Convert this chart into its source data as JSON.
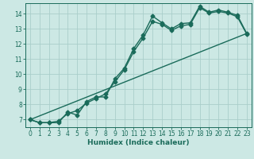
{
  "xlabel": "Humidex (Indice chaleur)",
  "bg_color": "#cce8e4",
  "line_color": "#1a6b5a",
  "grid_color": "#aaceca",
  "xlim": [
    -0.5,
    23.5
  ],
  "ylim": [
    6.5,
    14.7
  ],
  "xticks": [
    0,
    1,
    2,
    3,
    4,
    5,
    6,
    7,
    8,
    9,
    10,
    11,
    12,
    13,
    14,
    15,
    16,
    17,
    18,
    19,
    20,
    21,
    22,
    23
  ],
  "yticks": [
    7,
    8,
    9,
    10,
    11,
    12,
    13,
    14
  ],
  "line1_y": [
    7.0,
    6.8,
    6.8,
    6.8,
    7.5,
    7.3,
    8.2,
    8.5,
    8.5,
    9.7,
    10.4,
    11.7,
    12.6,
    13.85,
    13.4,
    13.0,
    13.35,
    13.4,
    14.5,
    14.1,
    14.25,
    14.1,
    13.9,
    12.7
  ],
  "line2_y": [
    7.0,
    6.8,
    6.8,
    6.9,
    7.4,
    7.6,
    8.1,
    8.4,
    8.7,
    9.5,
    10.3,
    11.5,
    12.4,
    13.5,
    13.3,
    12.9,
    13.2,
    13.3,
    14.4,
    14.05,
    14.15,
    14.05,
    13.8,
    12.65
  ],
  "line3_y": [
    7.0,
    12.7
  ],
  "line3_x": [
    0,
    23
  ],
  "marker_size": 2.5,
  "line_width": 1.0,
  "tick_fontsize": 5.5,
  "label_fontsize": 6.5
}
